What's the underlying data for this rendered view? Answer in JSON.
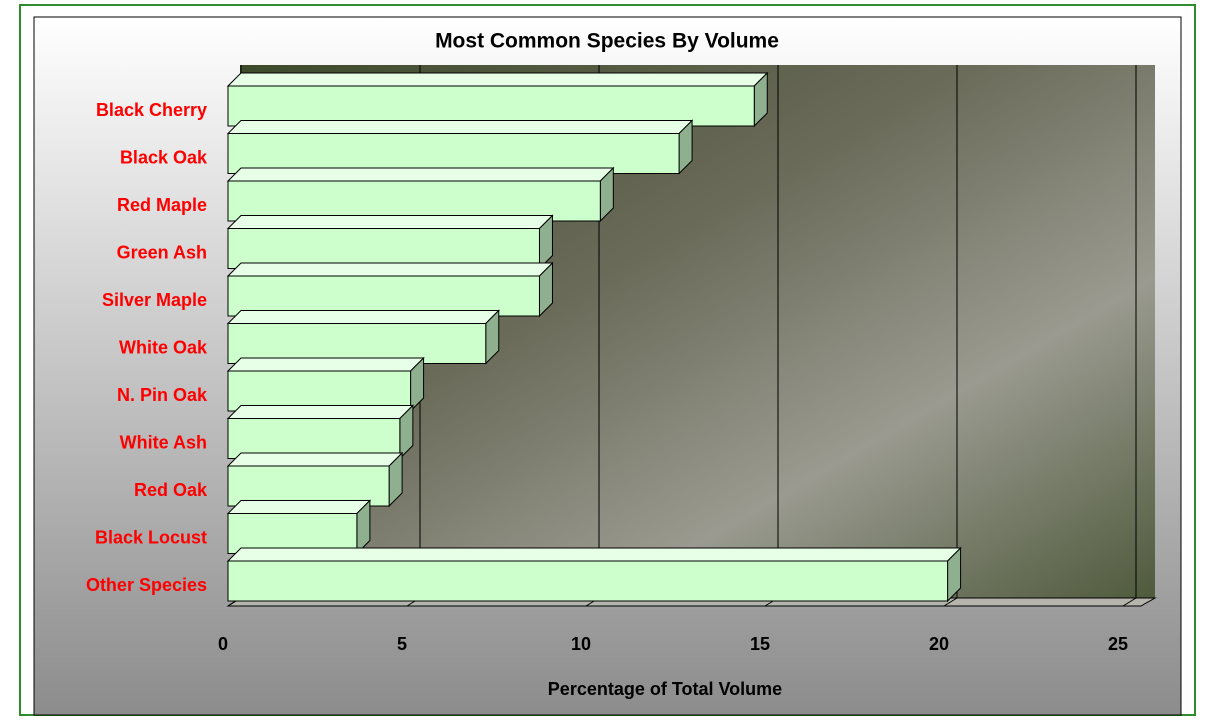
{
  "chart_data": {
    "type": "bar3d",
    "orientation": "horizontal",
    "title": "Most Common Species By Volume",
    "x_label": "Percentage of Total Volume",
    "categories": [
      "Black Cherry",
      "Black Oak",
      "Red Maple",
      "Green Ash",
      "Silver Maple",
      "White Oak",
      "N. Pin Oak",
      "White Ash",
      "Red Oak",
      "Black Locust",
      "Other Species"
    ],
    "values": [
      14.7,
      12.6,
      10.4,
      8.7,
      8.7,
      7.2,
      5.1,
      4.8,
      4.5,
      3.6,
      20.1
    ],
    "color": "#ccffcc",
    "label_color": "#ff0000",
    "xlim": [
      0,
      25
    ],
    "xticks": [
      0,
      5,
      10,
      15,
      20,
      25
    ],
    "grid": true
  }
}
